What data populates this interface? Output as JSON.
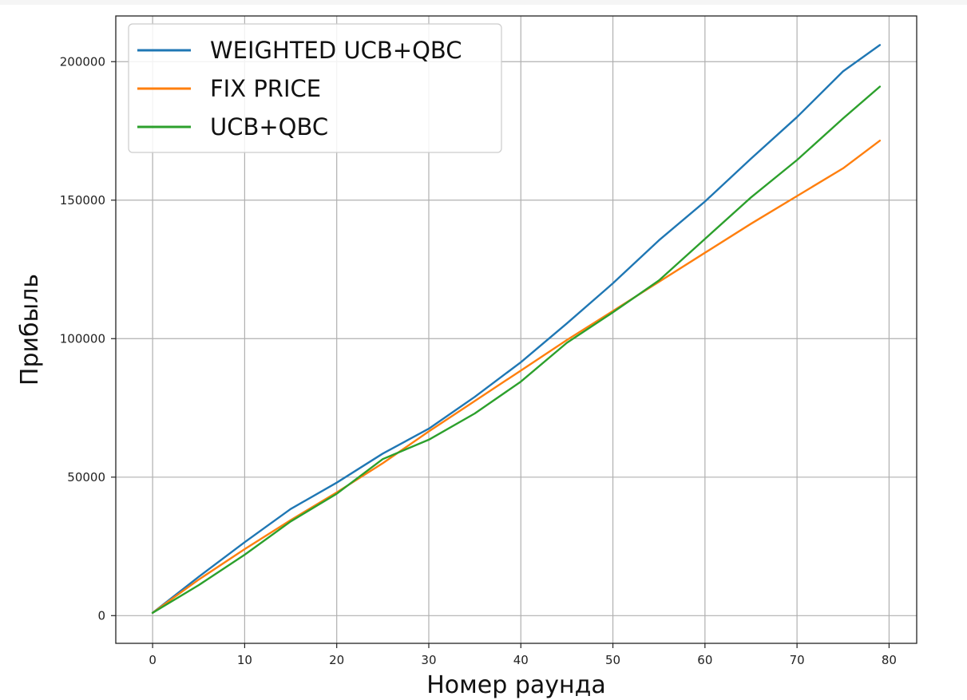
{
  "chart_data": {
    "type": "line",
    "title": "",
    "xlabel": "Номер раунда",
    "ylabel": "Прибыль",
    "xlim": [
      -4,
      83
    ],
    "ylim": [
      -10000,
      216500
    ],
    "xticks": [
      0,
      10,
      20,
      30,
      40,
      50,
      60,
      70,
      80
    ],
    "yticks": [
      0,
      50000,
      100000,
      150000,
      200000
    ],
    "grid": true,
    "legend_position": "top-left",
    "x": [
      0,
      5,
      10,
      15,
      20,
      25,
      30,
      35,
      40,
      45,
      50,
      55,
      60,
      65,
      70,
      75,
      79
    ],
    "series": [
      {
        "name": "WEIGHTED UCB+QBC",
        "color": "#1f77b4",
        "values": [
          1000,
          14000,
          26500,
          38500,
          48000,
          58500,
          67500,
          79000,
          91500,
          105500,
          120000,
          135500,
          149500,
          165000,
          180000,
          196500,
          206000
        ]
      },
      {
        "name": "FIX PRICE",
        "color": "#ff7f0e",
        "values": [
          1000,
          13000,
          24000,
          34500,
          44500,
          55000,
          66500,
          77500,
          88500,
          99500,
          110000,
          120500,
          131000,
          141500,
          151500,
          161500,
          171500
        ]
      },
      {
        "name": "UCB+QBC",
        "color": "#2ca02c",
        "values": [
          1000,
          11000,
          22000,
          34000,
          44000,
          56500,
          63500,
          73000,
          84500,
          98500,
          109500,
          121000,
          136000,
          151000,
          164500,
          179500,
          191000
        ]
      }
    ]
  }
}
